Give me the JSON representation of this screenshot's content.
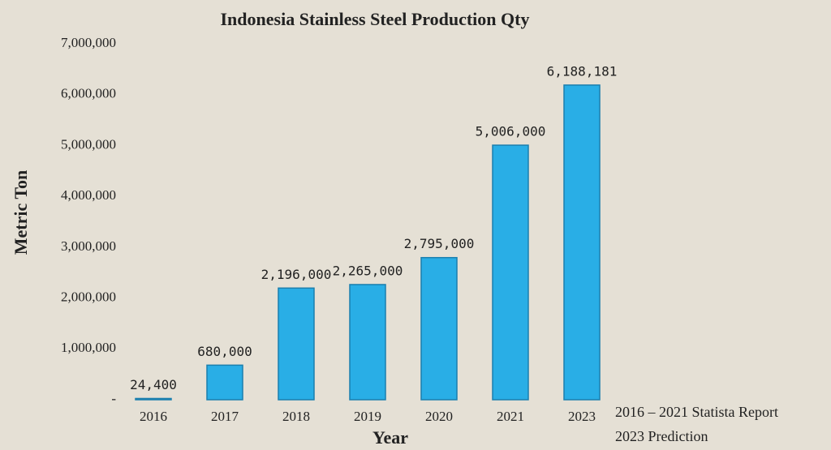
{
  "chart_data": {
    "type": "bar",
    "title": "Indonesia Stainless Steel Production Qty",
    "x_label": "Year",
    "y_label": "Metric Ton",
    "categories": [
      "2016",
      "2017",
      "2018",
      "2019",
      "2020",
      "2021",
      "2023"
    ],
    "values": [
      24400,
      680000,
      2196000,
      2265000,
      2795000,
      5006000,
      6188181
    ],
    "value_labels": [
      "24,400",
      "680,000",
      "2,196,000",
      "2,265,000",
      "2,795,000",
      "5,006,000",
      "6,188,181"
    ],
    "color": "#29aee6",
    "ylim": [
      0,
      7000000
    ],
    "yticks": [
      {
        "value": 0,
        "label": "-"
      },
      {
        "value": 1000000,
        "label": "1,000,000"
      },
      {
        "value": 2000000,
        "label": "2,000,000"
      },
      {
        "value": 3000000,
        "label": "3,000,000"
      },
      {
        "value": 4000000,
        "label": "4,000,000"
      },
      {
        "value": 5000000,
        "label": "5,000,000"
      },
      {
        "value": 6000000,
        "label": "6,000,000"
      },
      {
        "value": 7000000,
        "label": "7,000,000"
      }
    ],
    "grid": false,
    "notes": [
      "2016 – 2021 Statista Report",
      "2023 Prediction"
    ]
  }
}
